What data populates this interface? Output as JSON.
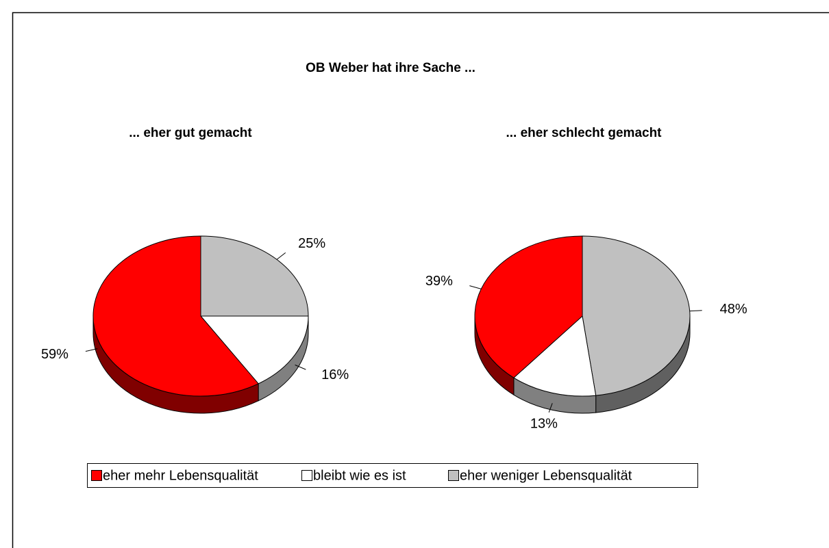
{
  "title": "OB Weber hat ihre Sache ...",
  "chart_data": [
    {
      "type": "pie",
      "title": "... eher gut gemacht",
      "categories": [
        "eher mehr Lebensqualität",
        "bleibt wie es ist",
        "eher weniger Lebensqualität"
      ],
      "values": [
        59,
        16,
        25
      ],
      "value_labels": [
        "59%",
        "16%",
        "25%"
      ],
      "colors": [
        "#ff0000",
        "#ffffff",
        "#c0c0c0"
      ]
    },
    {
      "type": "pie",
      "title": "... eher schlecht gemacht",
      "categories": [
        "eher mehr Lebensqualität",
        "bleibt wie es ist",
        "eher weniger Lebensqualität"
      ],
      "values": [
        39,
        13,
        48
      ],
      "value_labels": [
        "39%",
        "13%",
        "48%"
      ],
      "colors": [
        "#ff0000",
        "#ffffff",
        "#c0c0c0"
      ]
    }
  ]
}
